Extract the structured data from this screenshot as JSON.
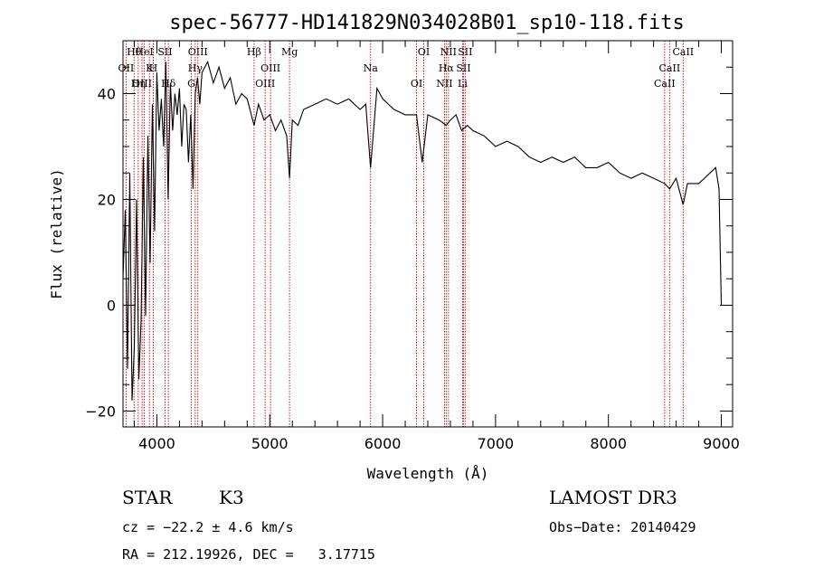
{
  "chart_data": {
    "type": "line",
    "title": "spec-56777-HD141829N034028B01_sp10-118.fits",
    "xlabel": "Wavelength (Å)",
    "ylabel": "Flux (relative)",
    "xlim": [
      3700,
      9100
    ],
    "ylim": [
      -23,
      50
    ],
    "x_ticks": [
      4000,
      5000,
      6000,
      7000,
      8000,
      9000
    ],
    "y_ticks": [
      -20,
      0,
      20,
      40
    ],
    "grid": false,
    "series": [
      {
        "x": [
          3700,
          3720,
          3740,
          3760,
          3780,
          3800,
          3820,
          3840,
          3860,
          3880,
          3900,
          3920,
          3940,
          3960,
          3980,
          4000,
          4020,
          4040,
          4060,
          4080,
          4100,
          4120,
          4140,
          4160,
          4180,
          4200,
          4220,
          4240,
          4260,
          4280,
          4300,
          4320,
          4340,
          4360,
          4380,
          4400,
          4450,
          4500,
          4550,
          4600,
          4650,
          4700,
          4750,
          4800,
          4861,
          4900,
          4950,
          5000,
          5050,
          5100,
          5150,
          5175,
          5200,
          5250,
          5300,
          5400,
          5500,
          5600,
          5700,
          5800,
          5850,
          5893,
          5950,
          6000,
          6100,
          6200,
          6300,
          6350,
          6400,
          6500,
          6563,
          6600,
          6650,
          6700,
          6750,
          6800,
          6900,
          7000,
          7100,
          7200,
          7300,
          7400,
          7500,
          7600,
          7700,
          7800,
          7900,
          8000,
          8100,
          8200,
          8300,
          8400,
          8498,
          8542,
          8600,
          8662,
          8700,
          8800,
          8850,
          8900,
          8950,
          8980,
          9000
        ],
        "y": [
          5,
          18,
          -12,
          25,
          -18,
          -8,
          20,
          -14,
          -3,
          28,
          -2,
          32,
          8,
          38,
          14,
          44,
          33,
          39,
          30,
          46,
          20,
          42,
          33,
          40,
          36,
          41,
          30,
          38,
          37,
          27,
          36,
          22,
          40,
          43,
          38,
          44,
          46,
          42,
          45,
          41,
          43,
          38,
          40,
          39,
          34,
          38,
          35,
          36,
          33,
          35,
          32,
          24,
          35,
          34,
          37,
          38,
          39,
          38,
          39,
          37,
          38,
          26,
          41,
          39,
          37,
          36,
          36,
          27,
          36,
          35,
          34,
          35,
          36,
          33,
          34,
          33,
          32,
          30,
          31,
          30,
          28,
          27,
          28,
          27,
          28,
          26,
          26,
          27,
          25,
          24,
          25,
          24,
          23,
          22,
          24,
          19,
          23,
          23,
          24,
          25,
          26,
          22,
          0
        ]
      }
    ],
    "spectral_lines": [
      {
        "label": "Hθ",
        "x": 3798
      },
      {
        "label": "OII",
        "x": 3727
      },
      {
        "label": "OIII",
        "x": 3869
      },
      {
        "label": "HeI",
        "x": 3889
      },
      {
        "label": "K",
        "x": 3934
      },
      {
        "label": "Hη",
        "x": 3835
      },
      {
        "label": "SII",
        "x": 4072
      },
      {
        "label": "H",
        "x": 3968
      },
      {
        "label": "Hδ",
        "x": 4102
      },
      {
        "label": "OIII",
        "x": 4363
      },
      {
        "label": "Hγ",
        "x": 4340
      },
      {
        "label": "G",
        "x": 4305
      },
      {
        "label": "Hβ",
        "x": 4861
      },
      {
        "label": "OIII",
        "x": 5007
      },
      {
        "label": "OIII",
        "x": 4959
      },
      {
        "label": "Mg",
        "x": 5175
      },
      {
        "label": "Na",
        "x": 5893
      },
      {
        "label": "OI",
        "x": 6300
      },
      {
        "label": "OI",
        "x": 6364
      },
      {
        "label": "Hα",
        "x": 6563
      },
      {
        "label": "NII",
        "x": 6548
      },
      {
        "label": "NII",
        "x": 6583
      },
      {
        "label": "SII",
        "x": 6716
      },
      {
        "label": "Li",
        "x": 6708
      },
      {
        "label": "SII",
        "x": 6731
      },
      {
        "label": "CaII",
        "x": 8542
      },
      {
        "label": "CaII",
        "x": 8498
      },
      {
        "label": "CaII",
        "x": 8662
      }
    ]
  },
  "info": {
    "class_label": "STAR",
    "subclass_label": "K3",
    "survey": "LAMOST DR3",
    "cz": "cz = −22.2 ± 4.6 km/s",
    "obs_date": "Obs−Date: 20140429",
    "coords": "RA = 212.19926, DEC =   3.17715"
  },
  "colors": {
    "spectrum": "#000000",
    "line_markers": "#cc0000"
  }
}
